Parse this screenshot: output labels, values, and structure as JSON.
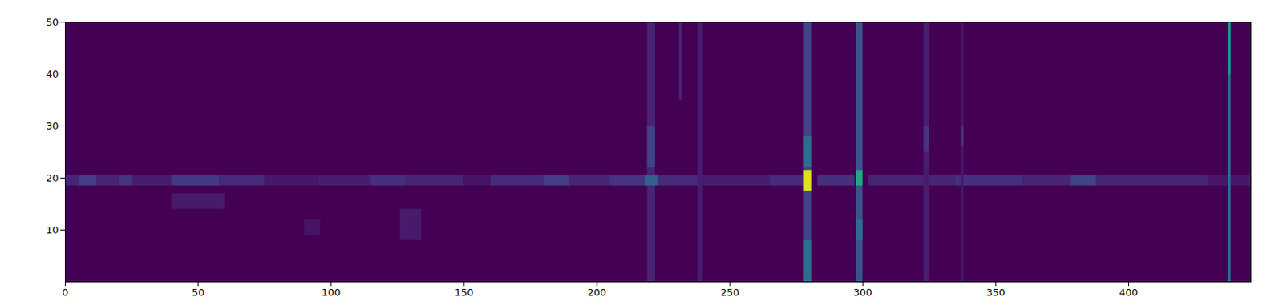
{
  "chart_data": {
    "type": "heatmap",
    "xlim": [
      0,
      446
    ],
    "ylim": [
      0,
      50
    ],
    "xticks": [
      0,
      50,
      100,
      150,
      200,
      250,
      300,
      350,
      400
    ],
    "yticks": [
      10,
      20,
      30,
      40,
      50
    ],
    "zlim": [
      0,
      1
    ],
    "grid": false,
    "cells": [
      [
        0,
        446,
        0,
        50,
        0
      ],
      [
        40,
        60,
        14,
        17,
        0.07
      ],
      [
        126,
        134,
        8,
        14,
        0.07
      ],
      [
        90,
        96,
        9,
        12,
        0.05
      ],
      [
        0,
        5,
        18.5,
        20.5,
        0.1
      ],
      [
        5,
        12,
        18.5,
        20.5,
        0.18
      ],
      [
        12,
        20,
        18.5,
        20.5,
        0.1
      ],
      [
        20,
        25,
        18.5,
        20.5,
        0.15
      ],
      [
        25,
        40,
        18.5,
        20.5,
        0.08
      ],
      [
        40,
        58,
        18.5,
        20.5,
        0.17
      ],
      [
        58,
        75,
        18.5,
        20.5,
        0.12
      ],
      [
        75,
        95,
        18.5,
        20.5,
        0.06
      ],
      [
        95,
        115,
        18.5,
        20.5,
        0.08
      ],
      [
        115,
        128,
        18.5,
        20.5,
        0.14
      ],
      [
        128,
        150,
        18.5,
        20.5,
        0.1
      ],
      [
        150,
        160,
        18.5,
        20.5,
        0.05
      ],
      [
        160,
        180,
        18.5,
        20.5,
        0.12
      ],
      [
        180,
        190,
        18.5,
        20.5,
        0.18
      ],
      [
        190,
        205,
        18.5,
        20.5,
        0.1
      ],
      [
        205,
        218,
        18.5,
        20.5,
        0.15
      ],
      [
        223,
        240,
        18.5,
        20.5,
        0.12
      ],
      [
        240,
        265,
        18.5,
        20.5,
        0.08
      ],
      [
        265,
        278,
        18.5,
        20.5,
        0.12
      ],
      [
        283,
        297,
        18.5,
        20.5,
        0.14
      ],
      [
        302,
        335,
        18.5,
        20.5,
        0.1
      ],
      [
        335,
        360,
        18.5,
        20.5,
        0.14
      ],
      [
        360,
        378,
        18.5,
        20.5,
        0.1
      ],
      [
        378,
        388,
        18.5,
        20.5,
        0.2
      ],
      [
        388,
        430,
        18.5,
        20.5,
        0.1
      ],
      [
        430,
        446,
        18.5,
        20.5,
        0.06
      ],
      [
        219,
        222,
        0,
        50,
        0.1
      ],
      [
        219,
        222,
        22,
        30,
        0.2
      ],
      [
        218,
        223,
        18.5,
        20.5,
        0.3
      ],
      [
        231,
        232,
        35,
        50,
        0.1
      ],
      [
        238,
        240,
        0,
        50,
        0.08
      ],
      [
        278,
        281,
        0,
        50,
        0.2
      ],
      [
        278,
        281,
        0,
        8,
        0.35
      ],
      [
        278,
        281,
        22,
        28,
        0.35
      ],
      [
        278,
        281,
        17.5,
        21.5,
        0.95
      ],
      [
        297.5,
        300,
        0,
        50,
        0.25
      ],
      [
        297.5,
        300,
        8,
        12,
        0.35
      ],
      [
        297.5,
        300,
        18.5,
        21.5,
        0.6
      ],
      [
        323,
        325,
        0,
        50,
        0.08
      ],
      [
        323,
        325,
        25,
        30,
        0.15
      ],
      [
        337,
        338,
        0,
        50,
        0.06
      ],
      [
        337,
        338,
        26,
        30,
        0.15
      ],
      [
        437.5,
        438.5,
        0,
        50,
        0.35
      ],
      [
        437.5,
        438.5,
        40,
        50,
        0.5
      ]
    ]
  }
}
